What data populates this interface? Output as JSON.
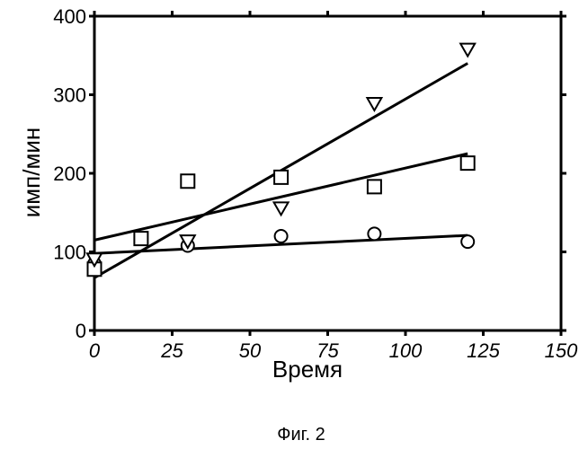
{
  "chart_data": {
    "type": "scatter",
    "xlabel": "Время",
    "ylabel": "имп/мин",
    "caption": "Фиг. 2",
    "xlim": [
      0,
      150
    ],
    "ylim": [
      0,
      400
    ],
    "x_ticks": [
      0,
      25,
      50,
      75,
      100,
      125,
      150
    ],
    "y_ticks": [
      0,
      100,
      200,
      300,
      400
    ],
    "x_tick_labels": [
      "0",
      "25",
      "50",
      "75",
      "100",
      "125",
      "150"
    ],
    "y_tick_labels": [
      "0",
      "100",
      "200",
      "300",
      "400"
    ],
    "series": [
      {
        "name": "circles",
        "marker": "circle",
        "points": [
          [
            0,
            85
          ],
          [
            30,
            108
          ],
          [
            60,
            120
          ],
          [
            90,
            123
          ],
          [
            120,
            113
          ]
        ],
        "fit": [
          [
            0,
            98
          ],
          [
            120,
            121
          ]
        ]
      },
      {
        "name": "squares",
        "marker": "square",
        "points": [
          [
            0,
            78
          ],
          [
            15,
            117
          ],
          [
            30,
            190
          ],
          [
            60,
            195
          ],
          [
            90,
            183
          ],
          [
            120,
            213
          ]
        ],
        "fit": [
          [
            0,
            115
          ],
          [
            120,
            225
          ]
        ]
      },
      {
        "name": "triangles",
        "marker": "triangle-down",
        "points": [
          [
            0,
            90
          ],
          [
            30,
            113
          ],
          [
            60,
            155
          ],
          [
            90,
            288
          ],
          [
            120,
            357
          ]
        ],
        "fit": [
          [
            0,
            67
          ],
          [
            120,
            340
          ]
        ]
      }
    ]
  }
}
